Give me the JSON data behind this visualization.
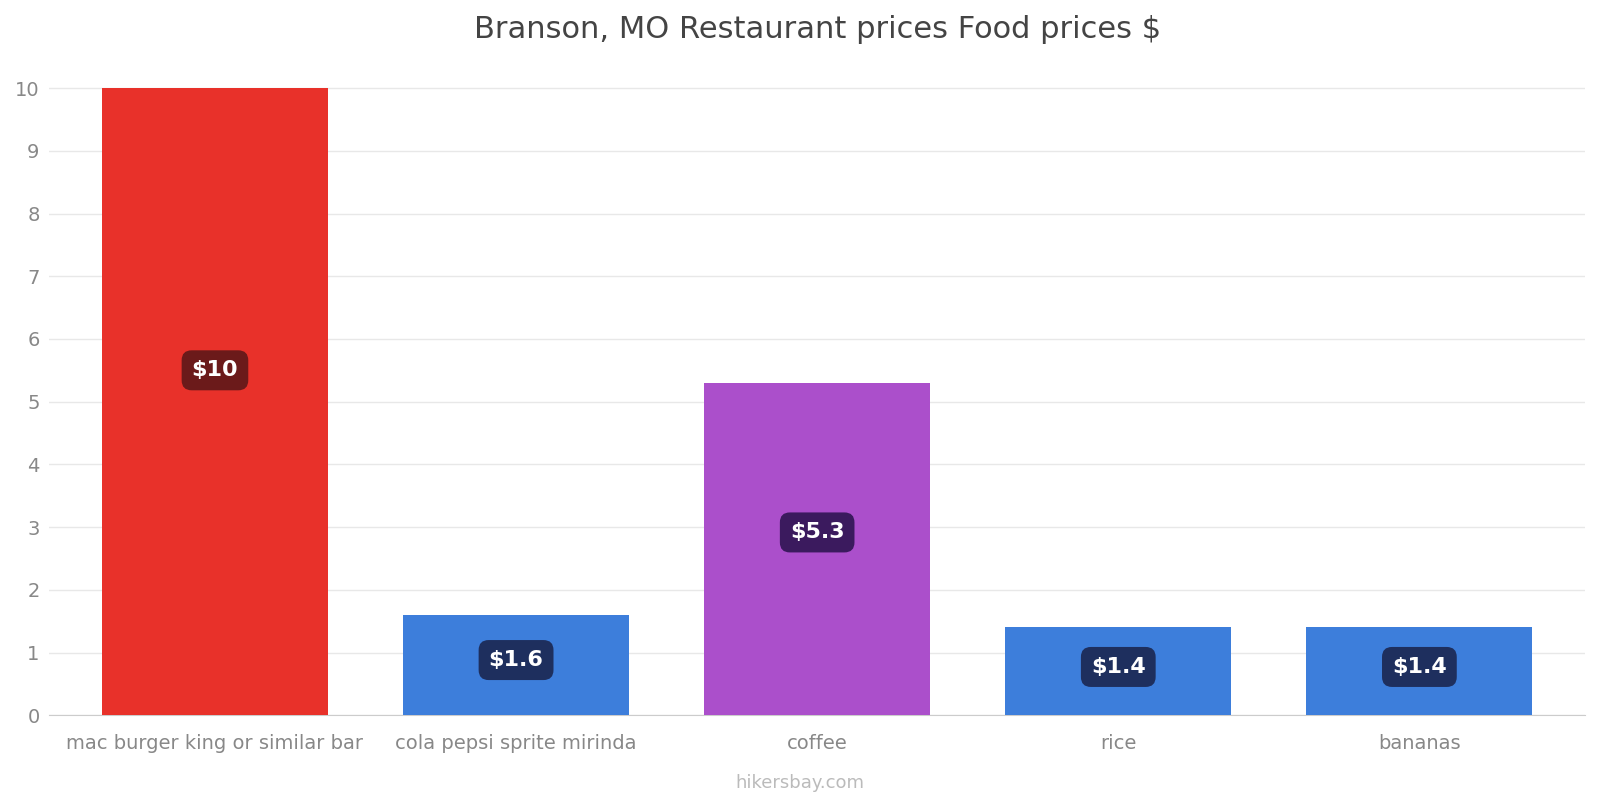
{
  "title": "Branson, MO Restaurant prices Food prices $",
  "categories": [
    "mac burger king or similar bar",
    "cola pepsi sprite mirinda",
    "coffee",
    "rice",
    "bananas"
  ],
  "values": [
    10,
    1.6,
    5.3,
    1.4,
    1.4
  ],
  "bar_colors": [
    "#e8312a",
    "#3d7edb",
    "#ab4fcb",
    "#3d7edb",
    "#3d7edb"
  ],
  "label_texts": [
    "$10",
    "$1.6",
    "$5.3",
    "$1.4",
    "$1.4"
  ],
  "label_bg_colors": [
    "#6b1a1a",
    "#1e2f5e",
    "#3b1a5e",
    "#1e2f5e",
    "#1e2f5e"
  ],
  "ylim": [
    0,
    10.4
  ],
  "yticks": [
    0,
    1,
    2,
    3,
    4,
    5,
    6,
    7,
    8,
    9,
    10
  ],
  "watermark": "hikersbay.com",
  "title_fontsize": 22,
  "tick_fontsize": 14,
  "label_fontsize": 16,
  "background_color": "#ffffff",
  "grid_color": "#e8e8e8"
}
